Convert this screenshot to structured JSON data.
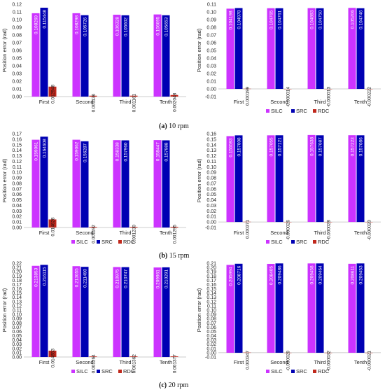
{
  "captions": [
    {
      "label": "(a)",
      "text": " 10 rpm"
    },
    {
      "label": "(b)",
      "text": " 15 rpm"
    },
    {
      "label": "(c)",
      "text": " 20 rpm"
    }
  ],
  "colors": {
    "SILC": "#cc33ff",
    "SRC": "#0000b3",
    "RDC": "#c0281c"
  },
  "chart_data": [
    {
      "type": "bar",
      "categories": [
        "First",
        "Second",
        "Third",
        "Tenth"
      ],
      "ylabel": "Position error (rad)",
      "ylim": [
        0,
        0.12
      ],
      "ystep": 0.01,
      "ydecimals": 2,
      "series": [
        {
          "name": "SILC",
          "values": [
            0.108269,
            0.108298,
            0.106328,
            0.106695
          ],
          "labels": [
            "0.108269",
            "0.108298",
            "0.106328",
            "0.106695"
          ]
        },
        {
          "name": "SRC",
          "values": [
            0.115448,
            0.105726,
            0.105602,
            0.105653
          ],
          "labels": [
            "0.115448",
            "0.105726",
            "0.105602",
            "0.105653"
          ]
        },
        {
          "name": "RDC",
          "values": [
            0.012948,
            0.001136,
            0.001161,
            0.002048
          ],
          "labels": [
            "0.012948",
            "0.001136",
            "0.001161",
            "0.002048"
          ]
        }
      ],
      "legend": "none"
    },
    {
      "type": "bar",
      "categories": [
        "First",
        "Second",
        "Third",
        "Tenth"
      ],
      "ylabel": "Position error (rad)",
      "ylim": [
        -0.01,
        0.11
      ],
      "ystep": 0.01,
      "ydecimals": 2,
      "series": [
        {
          "name": "SILC",
          "values": [
            0.104198,
            0.104765,
            0.104893,
            0.105206
          ],
          "labels": [
            "0.104198",
            "0.104765",
            "0.104893",
            "0.105206"
          ]
        },
        {
          "name": "SRC",
          "values": [
            0.104978,
            0.104761,
            0.10475,
            0.104746
          ],
          "labels": [
            "0.104978",
            "0.104761",
            "0.104750",
            "0.104746"
          ]
        },
        {
          "name": "RDC",
          "values": [
            0.000199,
            -1.4e-05,
            -1.3e-05,
            -0.000222
          ],
          "labels": [
            "0.000199",
            "-0.000014",
            "-0.000013",
            "-0.000222"
          ]
        }
      ],
      "legend": "bottom"
    },
    {
      "type": "bar",
      "categories": [
        "First",
        "Second",
        "Third",
        "Tenth"
      ],
      "ylabel": "Position error (rad)",
      "ylim": [
        0,
        0.17
      ],
      "ystep": 0.01,
      "ydecimals": 2,
      "series": [
        {
          "name": "SILC",
          "values": [
            0.159061,
            0.159062,
            0.158338,
            0.158447
          ],
          "labels": [
            "0.159061",
            "0.159062",
            "0.158338",
            "0.158447"
          ]
        },
        {
          "name": "SRC",
          "values": [
            0.164608,
            0.156287,
            0.15796,
            0.157988
          ],
          "labels": [
            "0.164608",
            "0.156287",
            "0.157960",
            "0.157988"
          ]
        },
        {
          "name": "RDC",
          "values": [
            0.014628,
            0.001192,
            0.00123,
            0.001295
          ],
          "labels": [
            "0.014628",
            "0.001192",
            "0.001230",
            "0.001295"
          ]
        }
      ],
      "legend": "bottom"
    },
    {
      "type": "bar",
      "categories": [
        "First",
        "Second",
        "Third",
        "Tenth"
      ],
      "ylabel": "Position error (rad)",
      "ylim": [
        -0.01,
        0.16
      ],
      "ystep": 0.01,
      "ydecimals": 2,
      "series": [
        {
          "name": "SILC",
          "values": [
            0.155593,
            0.157055,
            0.157638,
            0.157223
          ],
          "labels": [
            "0.155593",
            "0.157055",
            "0.157638",
            "0.157223"
          ]
        },
        {
          "name": "SRC",
          "values": [
            0.157008,
            0.157121,
            0.157087,
            0.157086
          ],
          "labels": [
            "0.157008",
            "0.157121",
            "0.157087",
            "0.157086"
          ]
        },
        {
          "name": "RDC",
          "values": [
            0.000371,
            -2.6e-05,
            -2.8e-05,
            -2e-05
          ],
          "labels": [
            "0.000371",
            "-0.000026",
            "-0.000028",
            "-0.000020"
          ]
        }
      ],
      "legend": "bottom"
    },
    {
      "type": "bar",
      "categories": [
        "First",
        "Second",
        "Third",
        "Tenth"
      ],
      "ylabel": "Position error (rad)",
      "ylim": [
        0,
        0.22
      ],
      "ystep": 0.01,
      "ydecimals": 2,
      "series": [
        {
          "name": "SILC",
          "values": [
            0.213853,
            0.213055,
            0.210975,
            0.209961
          ],
          "labels": [
            "0.213853",
            "0.213055",
            "0.210975",
            "0.209961"
          ]
        },
        {
          "name": "SRC",
          "values": [
            0.216115,
            0.21149,
            0.210747,
            0.210291
          ],
          "labels": [
            "0.216115",
            "0.211490",
            "0.210747",
            "0.210291"
          ]
        },
        {
          "name": "RDC",
          "values": [
            0.014853,
            0.001264,
            0.001362,
            0.001377
          ],
          "labels": [
            "0.014853",
            "0.001264",
            "0.001362",
            "0.001377"
          ]
        }
      ],
      "legend": "bottom"
    },
    {
      "type": "bar",
      "categories": [
        "First",
        "Second",
        "Third",
        "Tenth"
      ],
      "ylabel": "Position error (rad)",
      "ylim": [
        -0.01,
        0.21
      ],
      "ystep": 0.01,
      "ydecimals": 2,
      "series": [
        {
          "name": "SILC",
          "values": [
            0.205994,
            0.208405,
            0.209458,
            0.208611
          ],
          "labels": [
            "0.205994",
            "0.208405",
            "0.209458",
            "0.208611"
          ]
        },
        {
          "name": "SRC",
          "values": [
            0.208716,
            0.209486,
            0.209464,
            0.209453
          ],
          "labels": [
            "0.208716",
            "0.209486",
            "0.209464",
            "0.209453"
          ]
        },
        {
          "name": "RDC",
          "values": [
            0.000347,
            -2.9e-05,
            -3.2e-05,
            -2.1e-05
          ],
          "labels": [
            "0.000347",
            "-0.000029",
            "-0.000032",
            "-0.000021"
          ]
        }
      ],
      "legend": "bottom"
    }
  ]
}
